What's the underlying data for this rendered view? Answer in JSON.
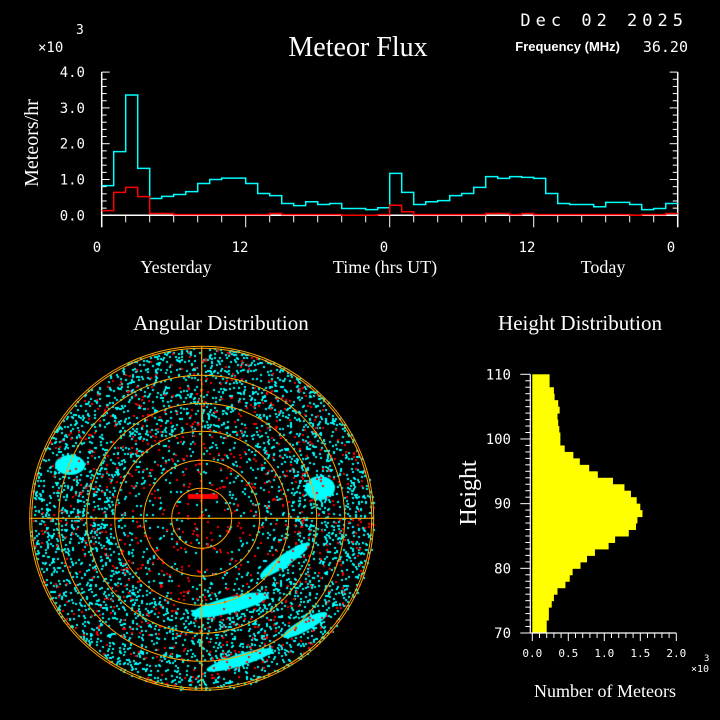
{
  "header": {
    "title": "Meteor Flux",
    "date": "Dec 02 2025",
    "frequency_label": "Frequency (MHz)",
    "frequency_value": "36.20",
    "multiplier": "×10",
    "exponent": "3"
  },
  "colors": {
    "all_meteors": "#00ffff",
    "second_series": "#ff0000",
    "height_bars": "#ffff00",
    "polar_grid": "#ffa500",
    "axes": "#ffffff"
  },
  "chart_data": [
    {
      "type": "line",
      "title": "Meteor Flux",
      "ylabel": "Meteors/hr",
      "xlabel": "Time (hrs UT)",
      "y_multiplier": "×10^3",
      "ylim": [
        0,
        4.0
      ],
      "xlim": [
        0,
        48
      ],
      "y_ticks": [
        "0.0",
        "1.0",
        "2.0",
        "3.0",
        "4.0"
      ],
      "x_ticks": [
        "0",
        "12",
        "0",
        "12",
        "0"
      ],
      "day_labels": [
        "Yesterday",
        "Today"
      ],
      "step": "hourly",
      "grid": false,
      "series": [
        {
          "color": "#00ffff",
          "values": [
            0.83,
            1.78,
            3.36,
            1.31,
            0.47,
            0.53,
            0.58,
            0.66,
            0.89,
            1.0,
            1.04,
            1.04,
            0.89,
            0.61,
            0.55,
            0.33,
            0.27,
            0.38,
            0.3,
            0.33,
            0.19,
            0.19,
            0.16,
            0.21,
            1.17,
            0.64,
            0.3,
            0.38,
            0.41,
            0.55,
            0.61,
            0.78,
            1.08,
            1.03,
            1.08,
            1.06,
            1.03,
            0.61,
            0.33,
            0.3,
            0.3,
            0.24,
            0.36,
            0.36,
            0.3,
            0.16,
            0.19,
            0.33
          ]
        },
        {
          "color": "#ff0000",
          "values": [
            0.13,
            0.64,
            0.78,
            0.52,
            0.05,
            0.05,
            0.02,
            0.02,
            0.02,
            0.02,
            0.02,
            0.02,
            0.02,
            0.02,
            0.05,
            0.02,
            0.02,
            0.02,
            0.02,
            0.02,
            0.0,
            0.0,
            0.0,
            0.02,
            0.28,
            0.1,
            0.02,
            0.02,
            0.02,
            0.02,
            0.02,
            0.02,
            0.05,
            0.05,
            0.02,
            0.05,
            0.02,
            0.02,
            0.02,
            0.02,
            0.02,
            0.02,
            0.02,
            0.02,
            0.0,
            0.02,
            0.02,
            0.05
          ]
        }
      ]
    },
    {
      "type": "scatter",
      "title": "Angular Distribution",
      "projection": "polar",
      "grid": true
    },
    {
      "type": "bar",
      "orientation": "horizontal",
      "title": "Height Distribution",
      "ylabel": "Height",
      "xlabel": "Number of Meteors",
      "x_multiplier": "×10^3",
      "xlim": [
        0,
        2.0
      ],
      "ylim": [
        70,
        110
      ],
      "x_ticks": [
        "0.0",
        "0.5",
        "1.0",
        "1.5",
        "2.0"
      ],
      "y_ticks": [
        "70",
        "80",
        "90",
        "100",
        "110"
      ],
      "bin_starts": [
        70,
        71,
        72,
        73,
        74,
        75,
        76,
        77,
        78,
        79,
        80,
        81,
        82,
        83,
        84,
        85,
        86,
        87,
        88,
        89,
        90,
        91,
        92,
        93,
        94,
        95,
        96,
        97,
        98,
        99,
        100,
        101,
        102,
        103,
        104,
        105,
        106,
        107,
        108,
        109
      ],
      "values": [
        0.2,
        0.2,
        0.23,
        0.23,
        0.27,
        0.3,
        0.35,
        0.46,
        0.52,
        0.56,
        0.67,
        0.76,
        0.87,
        1.06,
        1.15,
        1.34,
        1.44,
        1.46,
        1.53,
        1.5,
        1.45,
        1.37,
        1.28,
        1.12,
        0.91,
        0.79,
        0.66,
        0.57,
        0.45,
        0.39,
        0.39,
        0.375,
        0.36,
        0.35,
        0.38,
        0.36,
        0.31,
        0.3,
        0.24,
        0.24
      ]
    }
  ]
}
